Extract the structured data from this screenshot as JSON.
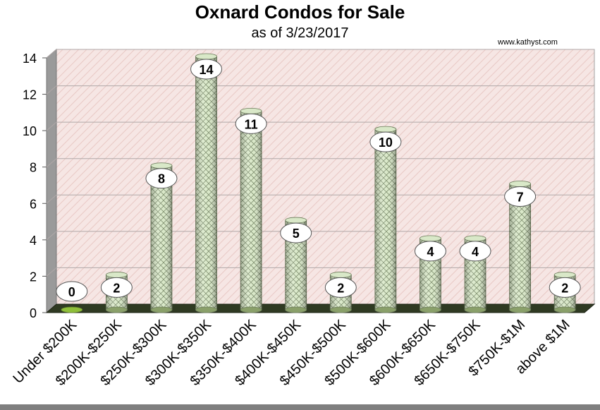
{
  "chart_data": {
    "type": "bar",
    "title": "Oxnard Condos for Sale",
    "subtitle": "as of 3/23/2017",
    "watermark": "www.kathyst.com",
    "categories": [
      "Under $200K",
      "$200K-$250K",
      "$250K-$300K",
      "$300K-$350K",
      "$350K-$400K",
      "$400K-$450K",
      "$450K-$500K",
      "$500K-$600K",
      "$600K-$650K",
      "$650K-$750K",
      "$750K-$1M",
      "above $1M"
    ],
    "values": [
      0,
      2,
      8,
      14,
      11,
      5,
      2,
      10,
      4,
      4,
      7,
      2
    ],
    "data_labels": [
      "0",
      "2",
      "8",
      "14",
      "11",
      "5",
      "2",
      "10",
      "4",
      "4",
      "7",
      "2"
    ],
    "ylim": [
      0,
      14
    ],
    "yticks": [
      "0",
      "2",
      "4",
      "6",
      "8",
      "10",
      "12",
      "14"
    ],
    "grid": true,
    "legend": "none",
    "colors": {
      "bar": "#d9e8c8",
      "bar_pattern": "#7a8a6a",
      "plot_background": "#f6e6e4",
      "wall_hatch": "#e8c8c4",
      "floor": "#2f3a22",
      "label_fill": "#ffffff"
    }
  }
}
